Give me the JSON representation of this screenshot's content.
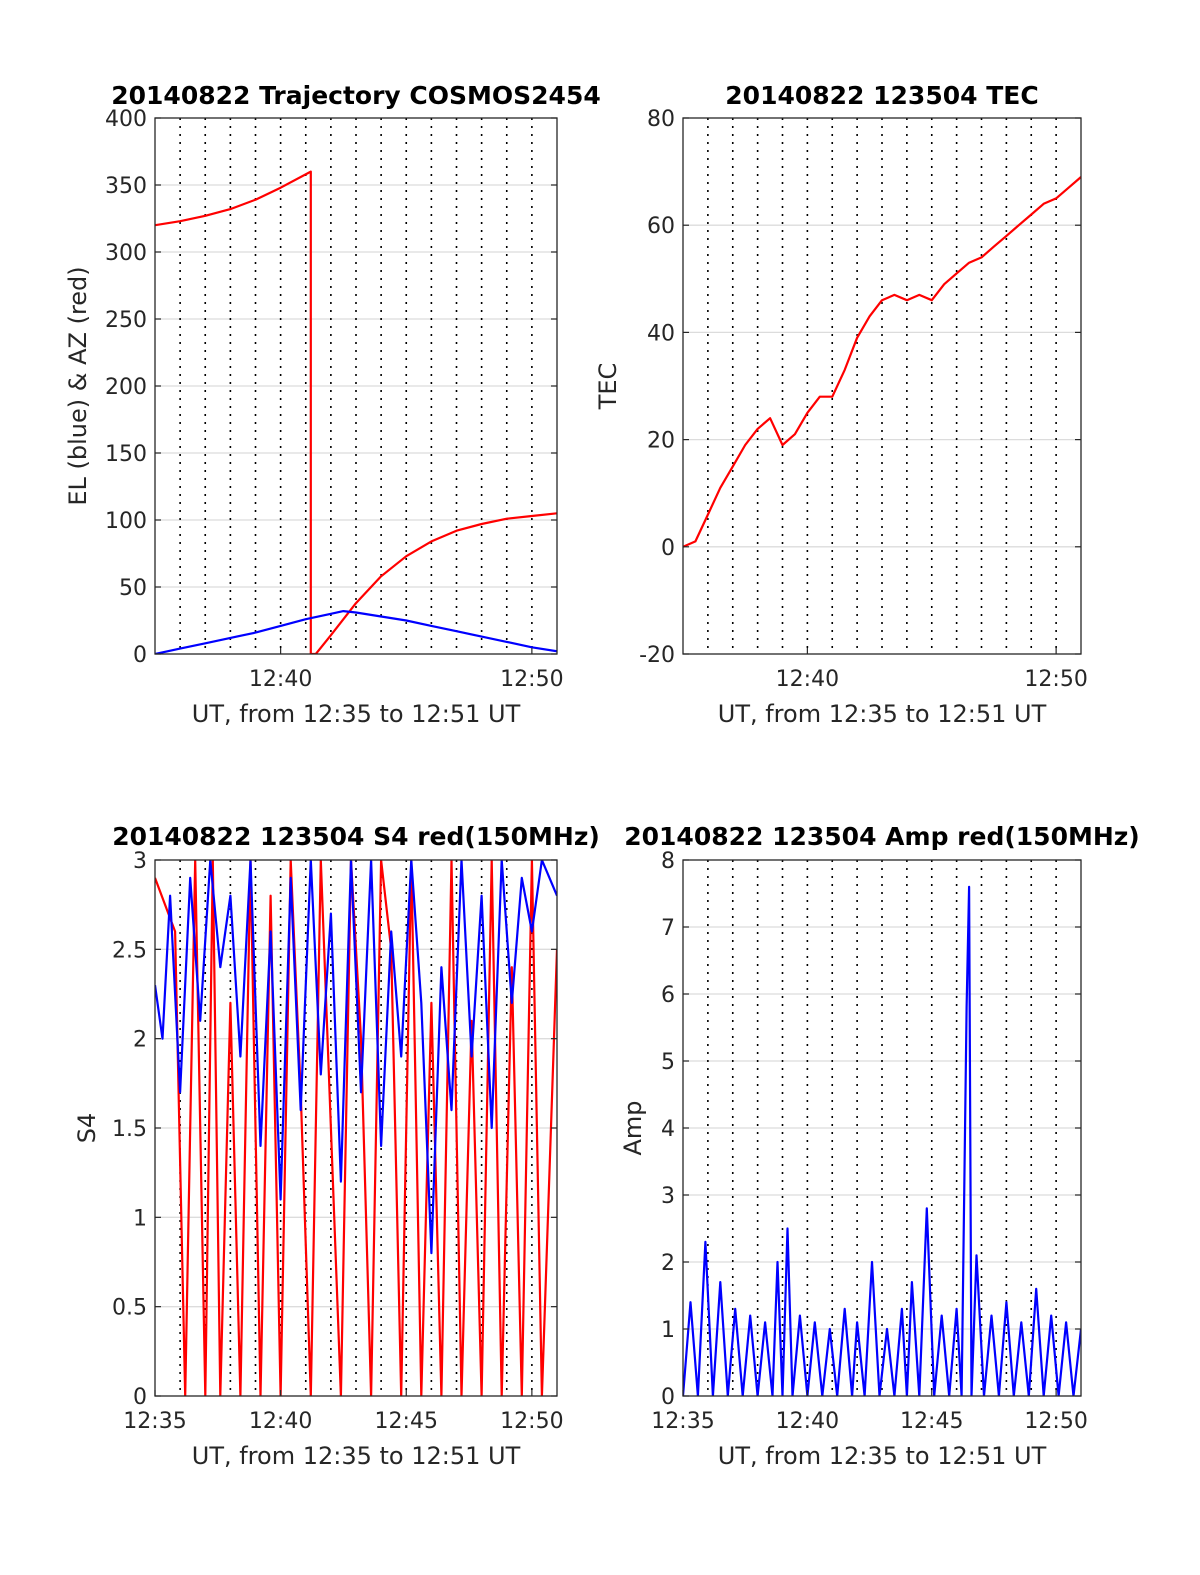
{
  "chart_data": [
    {
      "id": "p1",
      "type": "line",
      "title": "20140822 Trajectory COSMOS2454",
      "xlabel": "UT, from 12:35 to 12:51 UT",
      "ylabel": "EL (blue) & AZ (red)",
      "xlim": [
        0,
        16
      ],
      "ylim": [
        0,
        400
      ],
      "yticks": [
        0,
        50,
        100,
        150,
        200,
        250,
        300,
        350,
        400
      ],
      "xticks": [
        {
          "v": 5,
          "label": "12:40"
        },
        {
          "v": 15,
          "label": "12:50"
        }
      ],
      "grid_x": [
        1,
        2,
        3,
        4,
        5,
        6,
        7,
        8,
        9,
        10,
        11,
        12,
        13,
        14,
        15
      ],
      "series": [
        {
          "color": "#ff0000",
          "x": [
            0,
            1,
            2,
            3,
            4,
            5,
            6.2,
            6.2,
            6.4,
            7,
            8,
            9,
            10,
            11,
            12,
            13,
            14,
            15,
            16
          ],
          "y": [
            320,
            323,
            327,
            332,
            339,
            348,
            360,
            0,
            0,
            14,
            38,
            58,
            73,
            84,
            92,
            97,
            101,
            103,
            105
          ]
        },
        {
          "color": "#0000ff",
          "x": [
            0,
            1,
            2,
            3,
            4,
            5,
            6,
            7,
            7.5,
            8,
            9,
            10,
            11,
            12,
            13,
            14,
            15,
            16
          ],
          "y": [
            0,
            4,
            8,
            12,
            16,
            21,
            26,
            30,
            32,
            31,
            28,
            25,
            21,
            17,
            13,
            9,
            5,
            2
          ]
        }
      ]
    },
    {
      "id": "p2",
      "type": "line",
      "title": "20140822 123504 TEC",
      "xlabel": "UT, from 12:35 to 12:51 UT",
      "ylabel": "TEC",
      "xlim": [
        0,
        16
      ],
      "ylim": [
        -20,
        80
      ],
      "yticks": [
        -20,
        0,
        20,
        40,
        60,
        80
      ],
      "xticks": [
        {
          "v": 5,
          "label": "12:40"
        },
        {
          "v": 15,
          "label": "12:50"
        }
      ],
      "grid_x": [
        1,
        2,
        3,
        4,
        5,
        6,
        7,
        8,
        9,
        10,
        11,
        12,
        13,
        14,
        15
      ],
      "series": [
        {
          "color": "#ff0000",
          "x": [
            0,
            0.5,
            1,
            1.5,
            2,
            2.5,
            3,
            3.5,
            4,
            4.5,
            5,
            5.5,
            6,
            6.5,
            7,
            7.5,
            8,
            8.5,
            9,
            9.5,
            10,
            10.5,
            11,
            11.5,
            12,
            12.5,
            13,
            13.5,
            14,
            14.5,
            15,
            15.5,
            16
          ],
          "y": [
            0,
            1,
            6,
            11,
            15,
            19,
            22,
            24,
            19,
            21,
            25,
            28,
            28,
            33,
            39,
            43,
            46,
            47,
            46,
            47,
            46,
            49,
            51,
            53,
            54,
            56,
            58,
            60,
            62,
            64,
            65,
            67,
            69
          ]
        }
      ]
    },
    {
      "id": "p3",
      "type": "line",
      "title": "20140822 123504 S4 red(150MHz)",
      "xlabel": "UT, from 12:35 to 12:51 UT",
      "ylabel": "S4",
      "xlim": [
        0,
        16
      ],
      "ylim": [
        0,
        3
      ],
      "yticks": [
        0,
        0.5,
        1,
        1.5,
        2,
        2.5,
        3
      ],
      "ytick_labels": [
        "0",
        "0.5",
        "1",
        "1.5",
        "2",
        "2.5",
        "3"
      ],
      "xticks": [
        {
          "v": 0,
          "label": "12:35"
        },
        {
          "v": 5,
          "label": "12:40"
        },
        {
          "v": 10,
          "label": "12:45"
        },
        {
          "v": 15,
          "label": "12:50"
        }
      ],
      "grid_x": [
        1,
        2,
        3,
        4,
        5,
        6,
        7,
        8,
        9,
        10,
        11,
        12,
        13,
        14,
        15
      ],
      "series": [
        {
          "color": "#ff0000",
          "x": [
            0,
            0.8,
            1.2,
            1.6,
            2,
            2.3,
            2.6,
            3,
            3.4,
            3.8,
            4.2,
            4.6,
            5,
            5.4,
            5.8,
            6.2,
            6.6,
            7,
            7.4,
            7.8,
            8.2,
            8.6,
            9,
            9.4,
            9.8,
            10.2,
            10.6,
            11,
            11.4,
            11.8,
            12.2,
            12.6,
            13,
            13.4,
            13.8,
            14.2,
            14.6,
            15,
            15.4,
            16
          ],
          "y": [
            2.9,
            2.6,
            0,
            3,
            0,
            3,
            0,
            2.2,
            0,
            3,
            0,
            2.8,
            0,
            3,
            1.7,
            0,
            3,
            1.5,
            0,
            3,
            2,
            0,
            3,
            2.5,
            0,
            3,
            0,
            2.2,
            0,
            3,
            0,
            2.1,
            0,
            3,
            0,
            2.4,
            0,
            3,
            0,
            2.5
          ]
        },
        {
          "color": "#0000ff",
          "x": [
            0,
            0.3,
            0.6,
            1,
            1.4,
            1.8,
            2.2,
            2.6,
            3,
            3.4,
            3.8,
            4.2,
            4.6,
            5,
            5.4,
            5.8,
            6.2,
            6.6,
            7,
            7.4,
            7.8,
            8.2,
            8.6,
            9,
            9.4,
            9.8,
            10.2,
            10.6,
            11,
            11.4,
            11.8,
            12.2,
            12.6,
            13,
            13.4,
            13.8,
            14.2,
            14.6,
            15,
            15.4,
            16
          ],
          "y": [
            2.3,
            2,
            2.8,
            1.7,
            2.9,
            2.1,
            3,
            2.4,
            2.8,
            1.9,
            3,
            1.4,
            2.6,
            1.1,
            2.9,
            1.6,
            3,
            1.8,
            2.7,
            1.2,
            3,
            1.7,
            3,
            1.4,
            2.6,
            1.9,
            3,
            2.2,
            0.8,
            2.4,
            1.6,
            3,
            1.9,
            2.8,
            1.5,
            3,
            2.2,
            2.9,
            2.6,
            3,
            2.8
          ]
        }
      ]
    },
    {
      "id": "p4",
      "type": "line",
      "title": "20140822 123504 Amp red(150MHz)",
      "xlabel": "UT, from 12:35 to 12:51 UT",
      "ylabel": "Amp",
      "xlim": [
        0,
        16
      ],
      "ylim": [
        0,
        8
      ],
      "yticks": [
        0,
        1,
        2,
        3,
        4,
        5,
        6,
        7,
        8
      ],
      "xticks": [
        {
          "v": 0,
          "label": "12:35"
        },
        {
          "v": 5,
          "label": "12:40"
        },
        {
          "v": 10,
          "label": "12:45"
        },
        {
          "v": 15,
          "label": "12:50"
        }
      ],
      "grid_x": [
        1,
        2,
        3,
        4,
        5,
        6,
        7,
        8,
        9,
        10,
        11,
        12,
        13,
        14,
        15
      ],
      "series": [
        {
          "color": "#0000ff",
          "x": [
            0,
            0.3,
            0.6,
            0.9,
            1.2,
            1.5,
            1.8,
            2.1,
            2.4,
            2.7,
            3,
            3.3,
            3.6,
            3.8,
            4,
            4.2,
            4.4,
            4.7,
            5,
            5.3,
            5.6,
            5.9,
            6.2,
            6.5,
            6.8,
            7,
            7.3,
            7.6,
            7.9,
            8.2,
            8.5,
            8.8,
            9,
            9.2,
            9.5,
            9.8,
            10.1,
            10.4,
            10.7,
            11,
            11.2,
            11.4,
            11.5,
            11.6,
            11.8,
            12.1,
            12.4,
            12.7,
            13,
            13.3,
            13.6,
            13.9,
            14.2,
            14.5,
            14.8,
            15.1,
            15.4,
            15.7,
            16
          ],
          "y": [
            0,
            1.4,
            0,
            2.3,
            0,
            1.7,
            0,
            1.3,
            0,
            1.2,
            0,
            1.1,
            0,
            2.0,
            0,
            2.5,
            0,
            1.2,
            0,
            1.1,
            0,
            1.0,
            0,
            1.3,
            0,
            1.1,
            0,
            2.0,
            0,
            1.0,
            0,
            1.3,
            0,
            1.7,
            0,
            2.8,
            0,
            1.2,
            0,
            1.3,
            0,
            5.8,
            7.6,
            0,
            2.1,
            0,
            1.2,
            0,
            1.4,
            0,
            1.1,
            0,
            1.6,
            0,
            1.2,
            0,
            1.1,
            0,
            1.0
          ]
        }
      ]
    }
  ]
}
